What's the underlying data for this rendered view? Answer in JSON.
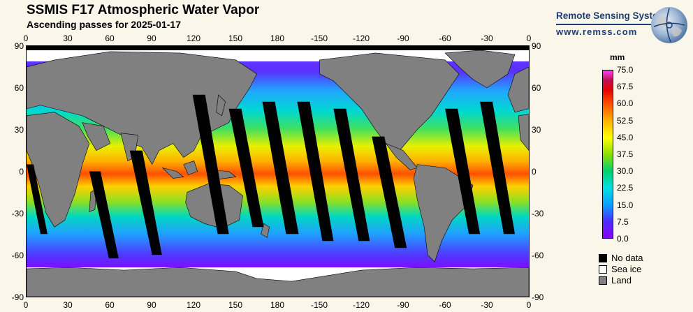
{
  "header": {
    "title": "SSMIS F17 Atmospheric Water Vapor",
    "subtitle": "Ascending passes for 2025-01-17"
  },
  "brand": {
    "name": "Remote Sensing Systems",
    "url": "www.remss.com",
    "logo_icon": "globe-icon"
  },
  "map": {
    "longitude_ticks": [
      "0",
      "30",
      "60",
      "90",
      "120",
      "150",
      "180",
      "-150",
      "-120",
      "-90",
      "-60",
      "-30",
      "0"
    ],
    "latitude_ticks": [
      "90",
      "60",
      "30",
      "0",
      "-30",
      "-60",
      "-90"
    ],
    "colors": {
      "land": "#808080",
      "sea_ice": "#ffffff",
      "no_data": "#000000"
    }
  },
  "colorbar": {
    "unit": "mm",
    "labels": [
      "75.0",
      "67.5",
      "60.0",
      "52.5",
      "45.0",
      "37.5",
      "30.0",
      "22.5",
      "15.0",
      "7.5",
      "0.0"
    ],
    "colors": [
      "#8a00ff",
      "#4b2cff",
      "#0aa0ff",
      "#00e0e0",
      "#00d070",
      "#8ee000",
      "#ffff00",
      "#ffb000",
      "#ff5000",
      "#e80000",
      "#c01050",
      "#ff40ff"
    ]
  },
  "legend": {
    "items": [
      {
        "label": "No data",
        "color": "#000000"
      },
      {
        "label": "Sea ice",
        "color": "#ffffff"
      },
      {
        "label": "Land",
        "color": "#808080"
      }
    ]
  }
}
